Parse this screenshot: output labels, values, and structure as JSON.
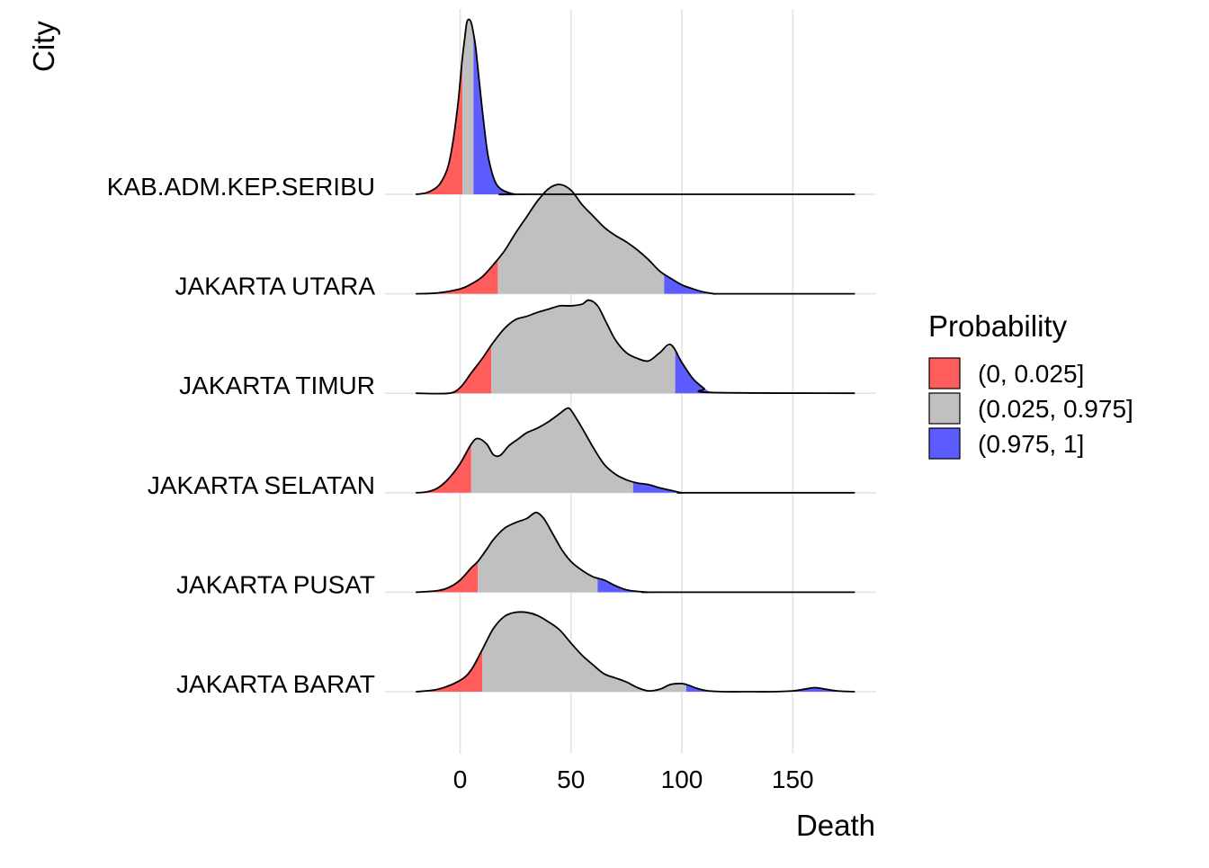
{
  "chart_data": {
    "type": "area",
    "subtype": "ridgeline-density",
    "xlabel": "Death",
    "ylabel": "City",
    "xlim": [
      -20,
      178
    ],
    "x_ticks": [
      "0",
      "50",
      "100",
      "150"
    ],
    "x_tick_values": [
      0,
      50,
      100,
      150
    ],
    "grid": true,
    "legend": {
      "title": "Probability",
      "position": "right",
      "entries": [
        {
          "label": "(0, 0.025]",
          "color": "#ff5c5c"
        },
        {
          "label": "(0.025, 0.975]",
          "color": "#c0c0c0"
        },
        {
          "label": "(0.975, 1]",
          "color": "#5c5cff"
        }
      ]
    },
    "categories": [
      "JAKARTA BARAT",
      "JAKARTA PUSAT",
      "JAKARTA SELATAN",
      "JAKARTA TIMUR",
      "JAKARTA UTARA",
      "KAB.ADM.KEP.SERIBU"
    ],
    "series": [
      {
        "name": "JAKARTA BARAT",
        "quantiles": [
          10,
          102
        ],
        "x": [
          -20,
          -10,
          0,
          5,
          10,
          15,
          20,
          25,
          30,
          35,
          40,
          45,
          50,
          55,
          60,
          65,
          70,
          75,
          80,
          85,
          90,
          95,
          100,
          103,
          107,
          112,
          120,
          130,
          140,
          150,
          155,
          160,
          165,
          170,
          178
        ],
        "density": [
          0.0,
          0.03,
          0.14,
          0.27,
          0.52,
          0.78,
          0.93,
          0.98,
          0.98,
          0.94,
          0.86,
          0.76,
          0.6,
          0.45,
          0.33,
          0.22,
          0.17,
          0.12,
          0.05,
          0.01,
          0.03,
          0.09,
          0.1,
          0.08,
          0.04,
          0.01,
          0.0,
          0.0,
          0.0,
          0.01,
          0.03,
          0.05,
          0.03,
          0.01,
          0.0
        ]
      },
      {
        "name": "JAKARTA PUSAT",
        "quantiles": [
          8,
          62
        ],
        "x": [
          -20,
          -10,
          -5,
          0,
          5,
          8,
          12,
          15,
          20,
          25,
          30,
          33,
          35,
          38,
          42,
          46,
          50,
          55,
          60,
          65,
          70,
          75,
          80,
          85,
          90,
          178
        ],
        "density": [
          0.0,
          0.02,
          0.06,
          0.15,
          0.3,
          0.38,
          0.53,
          0.65,
          0.79,
          0.86,
          0.91,
          0.97,
          0.98,
          0.9,
          0.71,
          0.52,
          0.38,
          0.27,
          0.19,
          0.15,
          0.08,
          0.03,
          0.01,
          0.0,
          0.0,
          0.0
        ]
      },
      {
        "name": "JAKARTA SELATAN",
        "quantiles": [
          5,
          78
        ],
        "x": [
          -20,
          -15,
          -10,
          -5,
          0,
          5,
          8,
          12,
          15,
          18,
          22,
          26,
          30,
          35,
          40,
          45,
          48,
          50,
          55,
          60,
          65,
          70,
          75,
          80,
          85,
          90,
          95,
          100,
          105,
          178
        ],
        "density": [
          0.0,
          0.01,
          0.06,
          0.18,
          0.36,
          0.6,
          0.67,
          0.6,
          0.47,
          0.46,
          0.58,
          0.66,
          0.74,
          0.8,
          0.88,
          0.98,
          1.04,
          1.02,
          0.8,
          0.56,
          0.35,
          0.23,
          0.16,
          0.12,
          0.1,
          0.06,
          0.03,
          0.0,
          0.0,
          0.0
        ]
      },
      {
        "name": "JAKARTA TIMUR",
        "quantiles": [
          14,
          97
        ],
        "x": [
          -20,
          -5,
          0,
          5,
          10,
          15,
          20,
          25,
          30,
          35,
          40,
          45,
          50,
          55,
          58,
          62,
          66,
          70,
          75,
          80,
          85,
          90,
          95,
          100,
          105,
          110,
          113,
          178
        ],
        "density": [
          0.0,
          0.0,
          0.07,
          0.25,
          0.43,
          0.63,
          0.8,
          0.91,
          0.95,
          1.0,
          1.04,
          1.08,
          1.08,
          1.1,
          1.15,
          1.08,
          0.87,
          0.66,
          0.5,
          0.43,
          0.4,
          0.5,
          0.6,
          0.38,
          0.18,
          0.06,
          0.01,
          0.0
        ]
      },
      {
        "name": "JAKARTA UTARA",
        "quantiles": [
          17,
          92
        ],
        "x": [
          -20,
          -10,
          0,
          5,
          10,
          15,
          20,
          25,
          30,
          35,
          40,
          45,
          50,
          55,
          60,
          65,
          70,
          75,
          80,
          85,
          90,
          95,
          100,
          105,
          110,
          115,
          120,
          178
        ],
        "density": [
          0.0,
          0.01,
          0.06,
          0.12,
          0.21,
          0.36,
          0.53,
          0.75,
          0.95,
          1.15,
          1.3,
          1.35,
          1.28,
          1.1,
          0.96,
          0.82,
          0.72,
          0.64,
          0.54,
          0.42,
          0.28,
          0.19,
          0.11,
          0.06,
          0.02,
          0.0,
          0.0,
          0.0
        ]
      },
      {
        "name": "KAB.ADM.KEP.SERIBU",
        "quantiles": [
          1,
          6
        ],
        "x": [
          -20,
          -15,
          -10,
          -7,
          -5,
          -3,
          -1,
          0,
          1,
          2,
          3,
          4,
          5,
          6,
          7,
          8,
          9,
          10,
          11,
          12,
          13,
          15,
          17,
          20,
          25,
          30,
          178
        ],
        "density": [
          0.0,
          0.02,
          0.1,
          0.23,
          0.39,
          0.69,
          1.11,
          1.39,
          1.68,
          1.91,
          2.12,
          2.16,
          2.12,
          1.99,
          1.82,
          1.56,
          1.3,
          1.04,
          0.8,
          0.58,
          0.42,
          0.21,
          0.1,
          0.04,
          0.0,
          0.0,
          0.0
        ]
      }
    ]
  }
}
